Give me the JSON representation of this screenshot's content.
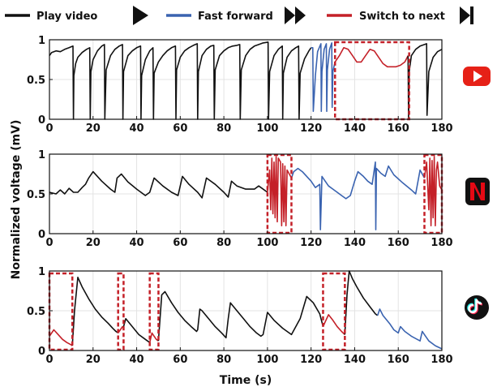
{
  "legend": {
    "play": {
      "label": "Play video",
      "color": "#111111"
    },
    "ff": {
      "label": "Fast forward",
      "color": "#3a63b0"
    },
    "next": {
      "label": "Switch to next",
      "color": "#c42028"
    }
  },
  "xlabel": "Time (s)",
  "ylabel": "Normalized voltage (mV)",
  "app_icons": [
    "youtube-icon",
    "netflix-icon",
    "tiktok-icon"
  ],
  "chart_data": [
    {
      "type": "line",
      "app": "youtube",
      "xlim": [
        0,
        180
      ],
      "ylim": [
        0,
        1
      ],
      "xticks": [
        0,
        20,
        40,
        60,
        80,
        100,
        120,
        140,
        160,
        180
      ],
      "yticks": [
        0,
        0.5,
        1
      ],
      "ytick_labels": [
        "0",
        "0.5",
        "1"
      ],
      "grid": true,
      "series": [
        {
          "mode": "play",
          "x": [
            0,
            1,
            3,
            5,
            7,
            9,
            10.8,
            11,
            11.2,
            12,
            13,
            15,
            17,
            18.5,
            18.7,
            19,
            20,
            22,
            24,
            25.2,
            25.4,
            26,
            28,
            30,
            32,
            33.5,
            33.7,
            34,
            36,
            38,
            40,
            41.8,
            42,
            42.3,
            44,
            46,
            47.5,
            47.7,
            48,
            50,
            52,
            54,
            56,
            57.8,
            58,
            58.3,
            60,
            62,
            64,
            66,
            67.8,
            68,
            68.3,
            70,
            72,
            74,
            75.4,
            75.6,
            76,
            78,
            80,
            82,
            84,
            86,
            87.3,
            87.5,
            88,
            90,
            92,
            94,
            96,
            98,
            100.3,
            100.5,
            101,
            103,
            105,
            106.8,
            107,
            107.3,
            109,
            111,
            113,
            114.3,
            114.5,
            115,
            117,
            119,
            120
          ],
          "y": [
            0.8,
            0.84,
            0.86,
            0.85,
            0.88,
            0.9,
            0.92,
            0.0,
            0.55,
            0.7,
            0.78,
            0.84,
            0.88,
            0.9,
            0.0,
            0.6,
            0.75,
            0.86,
            0.92,
            0.94,
            0.0,
            0.62,
            0.8,
            0.88,
            0.92,
            0.94,
            0.0,
            0.6,
            0.8,
            0.86,
            0.9,
            0.92,
            0.0,
            0.55,
            0.75,
            0.86,
            0.9,
            0.0,
            0.58,
            0.72,
            0.8,
            0.86,
            0.9,
            0.92,
            0.0,
            0.62,
            0.78,
            0.86,
            0.9,
            0.93,
            0.95,
            0.0,
            0.6,
            0.8,
            0.88,
            0.92,
            0.93,
            0.0,
            0.62,
            0.8,
            0.86,
            0.9,
            0.92,
            0.93,
            0.94,
            0.0,
            0.62,
            0.8,
            0.88,
            0.92,
            0.94,
            0.96,
            0.97,
            0.0,
            0.6,
            0.8,
            0.88,
            0.92,
            0.0,
            0.58,
            0.78,
            0.86,
            0.9,
            0.92,
            0.0,
            0.58,
            0.76,
            0.86,
            0.9
          ]
        },
        {
          "mode": "ff",
          "x": [
            120,
            120.8,
            121,
            122,
            123,
            124.5,
            124.7,
            125,
            126,
            127,
            127.2,
            127.5,
            128.5,
            129.5,
            129.7,
            130,
            131
          ],
          "y": [
            0.9,
            0.9,
            0.1,
            0.55,
            0.85,
            0.95,
            0.1,
            0.6,
            0.88,
            0.95,
            0.1,
            0.62,
            0.88,
            0.96,
            0.15,
            0.6,
            0.72
          ]
        },
        {
          "mode": "next",
          "x": [
            131,
            133,
            135,
            137,
            139,
            141,
            143,
            145,
            147,
            149,
            151,
            153,
            155,
            157,
            159,
            161,
            163,
            164.5
          ],
          "y": [
            0.72,
            0.8,
            0.9,
            0.88,
            0.8,
            0.72,
            0.72,
            0.8,
            0.88,
            0.86,
            0.78,
            0.7,
            0.66,
            0.66,
            0.66,
            0.68,
            0.72,
            0.8
          ]
        },
        {
          "mode": "play",
          "x": [
            164.5,
            164.7,
            165,
            166,
            168,
            170,
            172,
            173,
            173.2,
            174,
            176,
            178,
            180
          ],
          "y": [
            0.8,
            0.0,
            0.6,
            0.8,
            0.88,
            0.92,
            0.94,
            0.95,
            0.05,
            0.6,
            0.78,
            0.85,
            0.88
          ]
        }
      ],
      "highlights": [
        [
          131,
          165,
          0,
          0.97
        ]
      ]
    },
    {
      "type": "line",
      "app": "netflix",
      "xlim": [
        0,
        180
      ],
      "ylim": [
        0,
        1
      ],
      "xticks": [
        0,
        20,
        40,
        60,
        80,
        100,
        120,
        140,
        160,
        180
      ],
      "yticks": [
        0,
        0.5,
        1
      ],
      "ytick_labels": [
        "0",
        "0.5",
        "1"
      ],
      "grid": true,
      "series": [
        {
          "mode": "play",
          "x": [
            0,
            3,
            5,
            7,
            9,
            11,
            13,
            15,
            16.5,
            18,
            20,
            24,
            28,
            30,
            31,
            33,
            36,
            40,
            44,
            46,
            48,
            52,
            56,
            59,
            61,
            64,
            68,
            70,
            72,
            76,
            80,
            82,
            83.5,
            86,
            90,
            94,
            96,
            100
          ],
          "y": [
            0.52,
            0.5,
            0.55,
            0.5,
            0.57,
            0.52,
            0.52,
            0.58,
            0.62,
            0.7,
            0.78,
            0.66,
            0.56,
            0.52,
            0.7,
            0.75,
            0.65,
            0.56,
            0.48,
            0.52,
            0.7,
            0.6,
            0.52,
            0.48,
            0.72,
            0.62,
            0.52,
            0.45,
            0.7,
            0.62,
            0.52,
            0.46,
            0.66,
            0.6,
            0.56,
            0.56,
            0.6,
            0.52
          ]
        },
        {
          "mode": "next",
          "x": [
            100,
            101,
            101.5,
            102,
            102.5,
            103,
            103.5,
            104,
            104.5,
            105,
            106,
            106.5,
            107,
            107.5,
            108,
            108.5,
            109,
            110,
            111
          ],
          "y": [
            0.52,
            0.8,
            0.3,
            0.95,
            0.25,
            0.9,
            0.2,
            0.97,
            0.15,
            0.95,
            0.9,
            0.1,
            0.88,
            0.15,
            0.85,
            0.1,
            0.8,
            0.75,
            0.7
          ]
        },
        {
          "mode": "ff",
          "x": [
            111,
            112,
            114,
            116,
            118,
            120,
            122,
            124,
            124.3,
            125,
            126,
            128,
            130,
            132,
            134,
            136,
            138,
            140,
            141.5,
            144,
            146,
            148,
            149.5,
            149.7,
            150,
            152,
            154,
            155.5,
            158,
            162,
            166,
            168,
            170,
            172
          ],
          "y": [
            0.7,
            0.78,
            0.82,
            0.78,
            0.72,
            0.66,
            0.58,
            0.62,
            0.05,
            0.72,
            0.68,
            0.6,
            0.56,
            0.52,
            0.48,
            0.44,
            0.48,
            0.66,
            0.78,
            0.72,
            0.66,
            0.62,
            0.9,
            0.05,
            0.82,
            0.76,
            0.72,
            0.85,
            0.74,
            0.64,
            0.55,
            0.5,
            0.8,
            0.7
          ]
        },
        {
          "mode": "next",
          "x": [
            172,
            173,
            174,
            174.5,
            175,
            175.5,
            176,
            176.5,
            177,
            177.5,
            178,
            179,
            180
          ],
          "y": [
            0.7,
            0.9,
            0.3,
            0.95,
            0.1,
            0.92,
            0.2,
            0.97,
            0.1,
            0.8,
            0.9,
            0.6,
            0.55
          ]
        }
      ],
      "highlights": [
        [
          100,
          111,
          0.01,
          0.99
        ],
        [
          172,
          180,
          0.01,
          0.99
        ]
      ]
    },
    {
      "type": "line",
      "app": "tiktok",
      "xlim": [
        0,
        180
      ],
      "ylim": [
        0,
        1
      ],
      "xticks": [
        0,
        20,
        40,
        60,
        80,
        100,
        120,
        140,
        160,
        180
      ],
      "yticks": [
        0,
        0.5,
        1
      ],
      "ytick_labels": [
        "0",
        "0.5",
        "1"
      ],
      "grid": true,
      "series": [
        {
          "mode": "next",
          "x": [
            0,
            1,
            2,
            4,
            6,
            8,
            10,
            10.5
          ],
          "y": [
            0.18,
            0.22,
            0.26,
            0.2,
            0.14,
            0.1,
            0.07,
            0.06
          ]
        },
        {
          "mode": "play",
          "x": [
            10.5,
            11.5,
            13,
            15,
            18,
            21,
            24,
            27,
            29,
            30.5,
            31.5
          ],
          "y": [
            0.06,
            0.5,
            0.92,
            0.8,
            0.65,
            0.52,
            0.42,
            0.34,
            0.28,
            0.24,
            0.22
          ]
        },
        {
          "mode": "next",
          "x": [
            31.5,
            32.5,
            33.5,
            34
          ],
          "y": [
            0.22,
            0.26,
            0.3,
            0.3
          ]
        },
        {
          "mode": "play",
          "x": [
            34,
            35,
            38,
            41,
            44,
            46
          ],
          "y": [
            0.3,
            0.4,
            0.3,
            0.2,
            0.14,
            0.1
          ]
        },
        {
          "mode": "next",
          "x": [
            46,
            47,
            48,
            49,
            50
          ],
          "y": [
            0.1,
            0.22,
            0.18,
            0.14,
            0.12
          ]
        },
        {
          "mode": "play",
          "x": [
            50,
            51.5,
            53,
            56,
            59,
            62,
            65,
            67.5,
            68,
            69,
            70,
            73,
            76,
            79,
            81,
            82,
            83,
            86,
            89,
            92,
            95,
            97,
            98,
            100,
            103,
            107,
            111,
            115,
            118,
            121,
            124,
            125.5
          ],
          "y": [
            0.12,
            0.7,
            0.74,
            0.6,
            0.48,
            0.38,
            0.3,
            0.24,
            0.26,
            0.52,
            0.5,
            0.4,
            0.3,
            0.22,
            0.16,
            0.4,
            0.6,
            0.5,
            0.4,
            0.3,
            0.22,
            0.18,
            0.2,
            0.48,
            0.38,
            0.28,
            0.2,
            0.4,
            0.68,
            0.6,
            0.46,
            0.3
          ]
        },
        {
          "mode": "next",
          "x": [
            125.5,
            126.5,
            128,
            130,
            132,
            134,
            135.5
          ],
          "y": [
            0.3,
            0.36,
            0.45,
            0.38,
            0.3,
            0.24,
            0.2
          ]
        },
        {
          "mode": "play",
          "x": [
            135.5,
            136.5,
            137.5,
            139,
            141,
            144,
            147,
            149.5,
            150.5
          ],
          "y": [
            0.2,
            0.7,
            1.0,
            0.9,
            0.8,
            0.66,
            0.55,
            0.46,
            0.44
          ]
        },
        {
          "mode": "ff",
          "x": [
            150.5,
            151.5,
            153,
            156,
            158,
            160,
            161,
            163,
            166,
            170,
            171,
            172,
            174,
            177,
            180
          ],
          "y": [
            0.44,
            0.52,
            0.44,
            0.34,
            0.26,
            0.22,
            0.3,
            0.24,
            0.18,
            0.12,
            0.24,
            0.2,
            0.12,
            0.06,
            0.02
          ]
        }
      ],
      "highlights": [
        [
          0,
          10.5,
          0.01,
          0.97
        ],
        [
          31.5,
          34,
          0.01,
          0.97
        ],
        [
          46,
          50,
          0.01,
          0.97
        ],
        [
          125.5,
          135.5,
          0.01,
          0.97
        ]
      ]
    }
  ]
}
